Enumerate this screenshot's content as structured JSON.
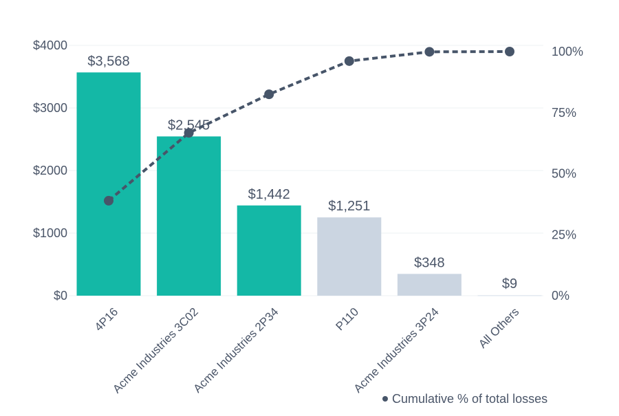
{
  "chart_data": {
    "type": "bar",
    "categories": [
      "4P16",
      "Acme Industries 3C02",
      "Acme Industries 2P34",
      "P110",
      "Acme Industries 3P24",
      "All Others"
    ],
    "values": [
      3568,
      2545,
      1442,
      1251,
      348,
      9
    ],
    "value_labels": [
      "$3,568",
      "$2,545",
      "$1,442",
      "$1,251",
      "$348",
      "$9"
    ],
    "bar_colors": [
      "#14b8a6",
      "#14b8a6",
      "#14b8a6",
      "#cbd5e1",
      "#cbd5e1",
      "#e2e8f0"
    ],
    "left_axis": {
      "ylim": [
        0,
        4000
      ],
      "ticks": [
        0,
        1000,
        2000,
        3000,
        4000
      ],
      "tick_labels": [
        "$0",
        "$1000",
        "$2000",
        "$3000",
        "$4000"
      ]
    },
    "right_axis": {
      "ylim": [
        0,
        100
      ],
      "ticks": [
        0,
        25,
        50,
        75,
        100
      ],
      "tick_labels": [
        "0%",
        "25%",
        "50%",
        "75%",
        "100%"
      ]
    },
    "series": [
      {
        "name": "Cumulative % of total losses",
        "type": "line",
        "axis": "right",
        "style": "dashed",
        "color": "#475569",
        "values": [
          38.9,
          66.7,
          82.5,
          96.1,
          99.9,
          100
        ]
      }
    ],
    "grid": true,
    "legend": "bottom-right"
  }
}
